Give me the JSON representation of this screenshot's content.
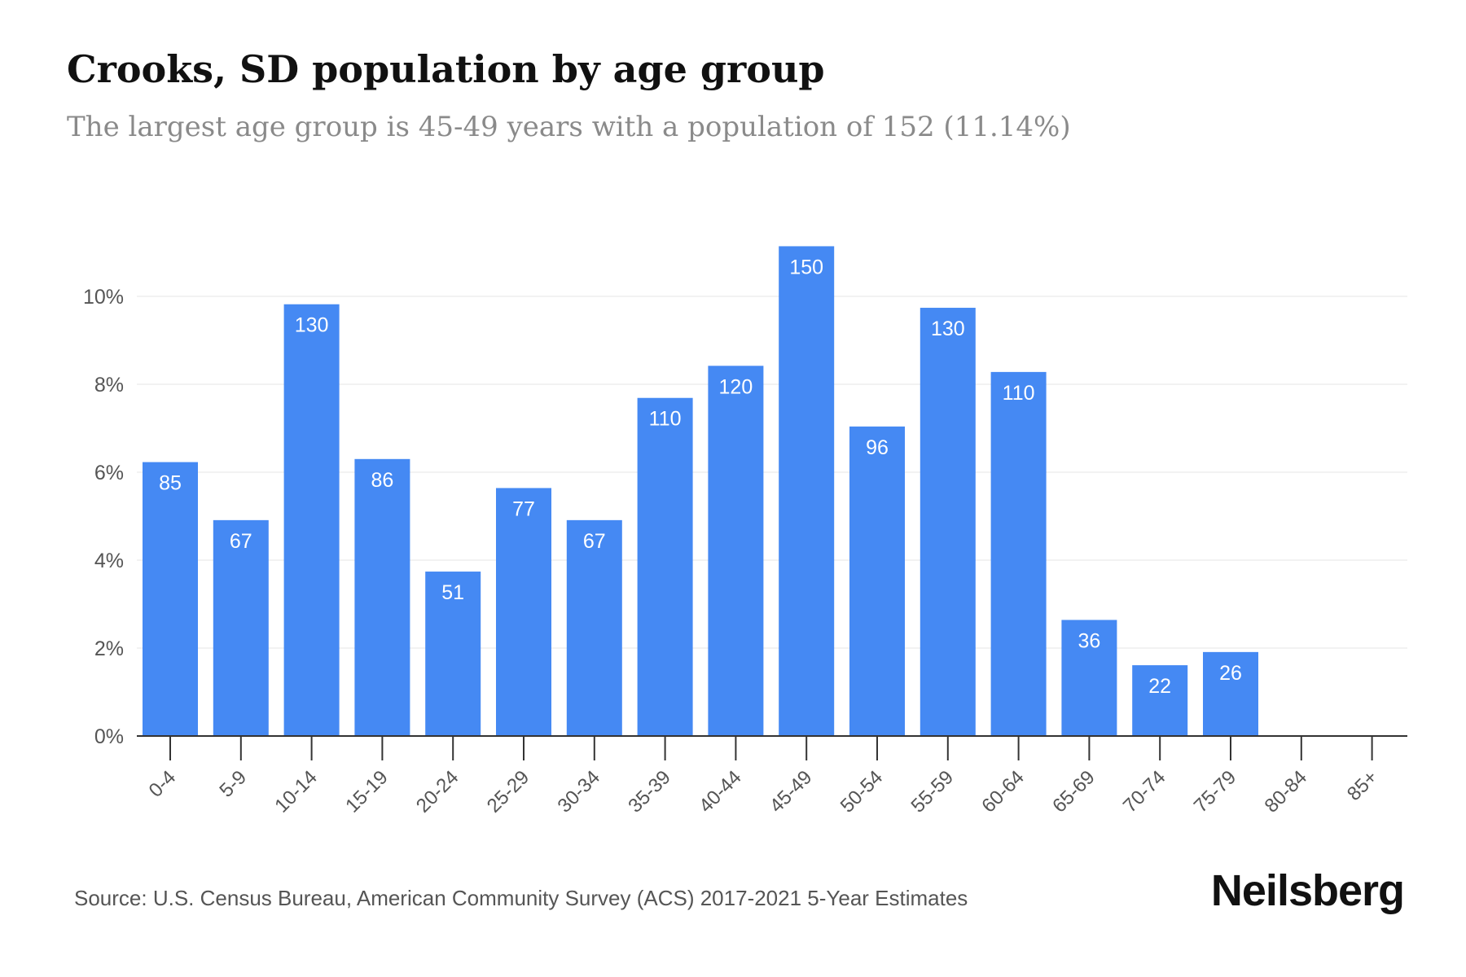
{
  "header": {
    "title": "Crooks, SD population by age group",
    "subtitle": "The largest age group is 45-49 years with a population of 152 (11.14%)"
  },
  "footer": {
    "source": "Source: U.S. Census Bureau, American Community Survey (ACS) 2017-2021 5-Year Estimates",
    "brand": "Neilsberg"
  },
  "colors": {
    "bar": "#4589f3",
    "bar_label": "#ffffff",
    "axis": "#333333",
    "gridline": "#eeeeee",
    "tick_text": "#555555"
  },
  "chart_data": {
    "type": "bar",
    "categories": [
      "0-4",
      "5-9",
      "10-14",
      "15-19",
      "20-24",
      "25-29",
      "30-34",
      "35-39",
      "40-44",
      "45-49",
      "50-54",
      "55-59",
      "60-64",
      "65-69",
      "70-74",
      "75-79",
      "80-84",
      "85+"
    ],
    "series": [
      {
        "values": [
          6.23,
          4.91,
          9.82,
          6.3,
          3.74,
          5.64,
          4.91,
          7.69,
          8.42,
          11.14,
          7.04,
          9.74,
          8.28,
          2.64,
          1.61,
          1.91,
          0,
          0
        ],
        "data_labels": [
          "85",
          "67",
          "130",
          "86",
          "51",
          "77",
          "67",
          "110",
          "120",
          "150",
          "96",
          "130",
          "110",
          "36",
          "22",
          "26",
          "",
          ""
        ]
      }
    ],
    "ylim": [
      0,
      12
    ],
    "yticks": [
      0,
      2,
      4,
      6,
      8,
      10
    ],
    "ytick_labels": [
      "0%",
      "2%",
      "4%",
      "6%",
      "8%",
      "10%"
    ],
    "xlabel": "",
    "ylabel": "",
    "grid": true,
    "legend": "none"
  }
}
